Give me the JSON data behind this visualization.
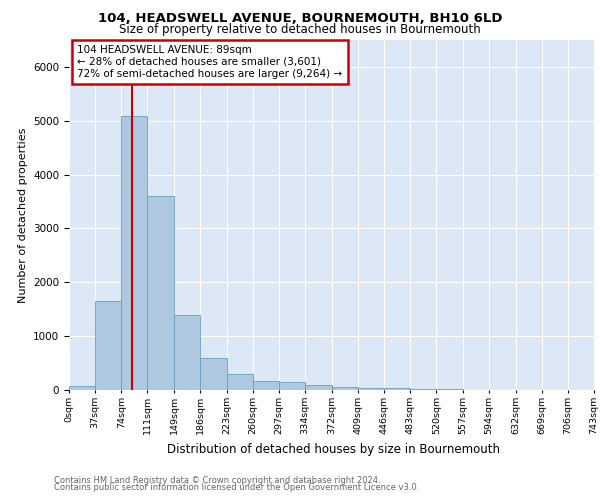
{
  "title1": "104, HEADSWELL AVENUE, BOURNEMOUTH, BH10 6LD",
  "title2": "Size of property relative to detached houses in Bournemouth",
  "xlabel": "Distribution of detached houses by size in Bournemouth",
  "ylabel": "Number of detached properties",
  "bin_labels": [
    "0sqm",
    "37sqm",
    "74sqm",
    "111sqm",
    "149sqm",
    "186sqm",
    "223sqm",
    "260sqm",
    "297sqm",
    "334sqm",
    "372sqm",
    "409sqm",
    "446sqm",
    "483sqm",
    "520sqm",
    "557sqm",
    "594sqm",
    "632sqm",
    "669sqm",
    "706sqm",
    "743sqm"
  ],
  "bin_edges": [
    0,
    37,
    74,
    111,
    149,
    186,
    223,
    260,
    297,
    334,
    372,
    409,
    446,
    483,
    520,
    557,
    594,
    632,
    669,
    706,
    743
  ],
  "bar_heights": [
    75,
    1650,
    5080,
    3600,
    1400,
    600,
    300,
    160,
    140,
    100,
    60,
    40,
    40,
    15,
    10,
    5,
    5,
    0,
    0,
    0
  ],
  "bar_color": "#aec8e0",
  "bar_edgecolor": "#6a9fc0",
  "property_size": 89,
  "red_line_color": "#cc0000",
  "annotation_line1": "104 HEADSWELL AVENUE: 89sqm",
  "annotation_line2": "← 28% of detached houses are smaller (3,601)",
  "annotation_line3": "72% of semi-detached houses are larger (9,264) →",
  "annotation_box_color": "#cc0000",
  "ylim": [
    0,
    6500
  ],
  "background_color": "#dce8f5",
  "grid_color": "#b8cfe0",
  "footer_text1": "Contains HM Land Registry data © Crown copyright and database right 2024.",
  "footer_text2": "Contains public sector information licensed under the Open Government Licence v3.0."
}
